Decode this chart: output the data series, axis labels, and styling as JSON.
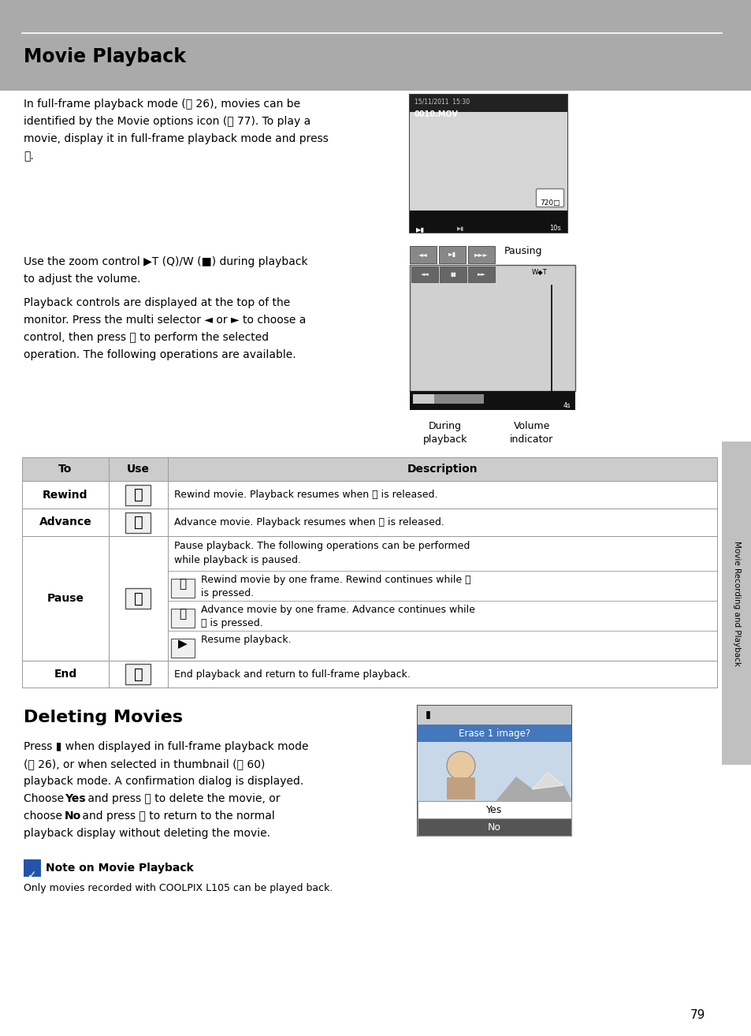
{
  "page_bg": "#ffffff",
  "header_bg": "#aaaaaa",
  "title1": "Movie Playback",
  "title2": "Deleting Movies",
  "sidebar_bg": "#c0c0c0",
  "sidebar_text": "Movie Recording and Playback",
  "page_number": "79",
  "note_box_color": "#2255aa",
  "table_header_bg": "#cccccc",
  "table_line_color": "#999999"
}
